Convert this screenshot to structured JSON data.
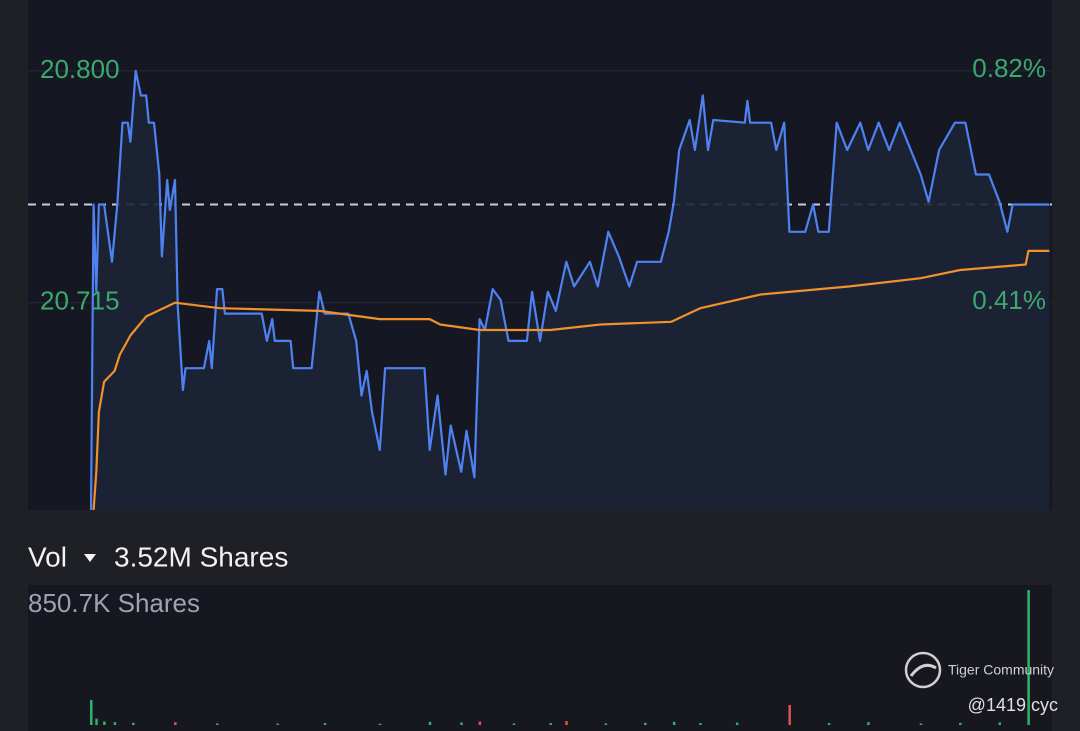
{
  "chart_data": [
    {
      "type": "line",
      "ylim": [
        20.639,
        20.826
      ],
      "yticks": [
        {
          "value": 20.8,
          "label": "20.800"
        },
        20.715
      ],
      "y2lim": [
        0.042,
        0.944
      ],
      "y2ticks": [
        {
          "value": 0.82,
          "label": "0.82%"
        },
        {
          "value": 0.41,
          "label": "0.41%"
        }
      ],
      "xlim": [
        0,
        390
      ],
      "grid": true,
      "reference_line": 20.751,
      "series": [
        {
          "color": "#4f82f0",
          "fill": true,
          "x": [
            24,
            25,
            26,
            27,
            29,
            32,
            34,
            36,
            38,
            39,
            41,
            43,
            45,
            46,
            48,
            50,
            51,
            53,
            54,
            56,
            57,
            59,
            60,
            67,
            69,
            70,
            72,
            74,
            75,
            89,
            91,
            93,
            94,
            100,
            101,
            108,
            110,
            111,
            113,
            122,
            125,
            127,
            129,
            131,
            134,
            136,
            151,
            153,
            156,
            159,
            161,
            165,
            167,
            170,
            172,
            174,
            177,
            180,
            183,
            190,
            192,
            195,
            198,
            201,
            205,
            208,
            214,
            217,
            221,
            225,
            229,
            232,
            241,
            244,
            246,
            248,
            252,
            254,
            257,
            259,
            261,
            273,
            274,
            275,
            283,
            285,
            288,
            290,
            296,
            299,
            301,
            305,
            308,
            312,
            317,
            320,
            324,
            328,
            332,
            340,
            343,
            347,
            353,
            357,
            361,
            366,
            370,
            373,
            375,
            389
          ],
          "values": [
            20.639,
            20.751,
            20.719,
            20.751,
            20.751,
            20.73,
            20.751,
            20.781,
            20.781,
            20.774,
            20.8,
            20.791,
            20.791,
            20.781,
            20.781,
            20.762,
            20.732,
            20.76,
            20.749,
            20.76,
            20.714,
            20.683,
            20.691,
            20.691,
            20.701,
            20.691,
            20.72,
            20.72,
            20.711,
            20.711,
            20.701,
            20.709,
            20.701,
            20.701,
            20.691,
            20.691,
            20.71,
            20.719,
            20.711,
            20.711,
            20.701,
            20.681,
            20.69,
            20.675,
            20.661,
            20.691,
            20.691,
            20.661,
            20.681,
            20.652,
            20.67,
            20.653,
            20.668,
            20.651,
            20.709,
            20.705,
            20.72,
            20.716,
            20.701,
            20.701,
            20.719,
            20.701,
            20.719,
            20.712,
            20.73,
            20.721,
            20.73,
            20.721,
            20.741,
            20.732,
            20.721,
            20.73,
            20.73,
            20.741,
            20.752,
            20.771,
            20.782,
            20.771,
            20.791,
            20.771,
            20.782,
            20.781,
            20.789,
            20.781,
            20.781,
            20.771,
            20.781,
            20.741,
            20.741,
            20.751,
            20.741,
            20.741,
            20.781,
            20.771,
            20.781,
            20.771,
            20.781,
            20.771,
            20.781,
            20.762,
            20.752,
            20.771,
            20.781,
            20.781,
            20.762,
            20.762,
            20.752,
            20.741,
            20.751,
            20.751
          ]
        },
        {
          "color": "#f0912c",
          "fill": false,
          "x": [
            25,
            26,
            27,
            29,
            33,
            35,
            39,
            45,
            56,
            73,
            111,
            134,
            153,
            157,
            172,
            199,
            218,
            245,
            256,
            279,
            313,
            340,
            355,
            380,
            381,
            389
          ],
          "values": [
            20.639,
            20.653,
            20.675,
            20.686,
            20.69,
            20.696,
            20.703,
            20.71,
            20.715,
            20.713,
            20.712,
            20.709,
            20.709,
            20.707,
            20.705,
            20.705,
            20.707,
            20.708,
            20.713,
            20.718,
            20.721,
            20.724,
            20.727,
            20.729,
            20.734,
            20.734
          ]
        }
      ]
    },
    {
      "type": "bar",
      "title": "Vol",
      "subtitle": "3.52M Shares",
      "ylim": [
        0,
        850700
      ],
      "yticks": [
        {
          "value": 850700,
          "label": "850.7K Shares"
        }
      ],
      "xlim": [
        0,
        390
      ],
      "x": [
        24,
        26,
        29,
        33,
        40,
        56,
        72,
        95,
        113,
        134,
        153,
        165,
        172,
        185,
        199,
        205,
        220,
        235,
        246,
        256,
        270,
        290,
        305,
        320,
        340,
        355,
        370,
        381
      ],
      "values": [
        158000,
        40000,
        22000,
        18000,
        14000,
        18000,
        10000,
        9000,
        12000,
        8000,
        20000,
        16000,
        22000,
        10000,
        12000,
        25000,
        10000,
        14000,
        20000,
        12000,
        15000,
        126000,
        12000,
        18000,
        10000,
        14000,
        16000,
        850700
      ],
      "colors": [
        "#2fb36b",
        "#2fb36b",
        "#2fb36b",
        "#2fb36b",
        "#2fb36b",
        "#e0534a",
        "#2fb36b",
        "#2fb36b",
        "#2fb36b",
        "#2fb36b",
        "#2fb36b",
        "#2fb36b",
        "#e0534a",
        "#2fb36b",
        "#2fb36b",
        "#e0534a",
        "#2fb36b",
        "#2fb36b",
        "#2fb36b",
        "#2fb36b",
        "#2fb36b",
        "#e0534a",
        "#2fb36b",
        "#2fb36b",
        "#2fb36b",
        "#2fb36b",
        "#2fb36b",
        "#2fb36b"
      ]
    }
  ],
  "watermark": {
    "brand": "Tiger Community",
    "user": "@1419 cyc"
  }
}
